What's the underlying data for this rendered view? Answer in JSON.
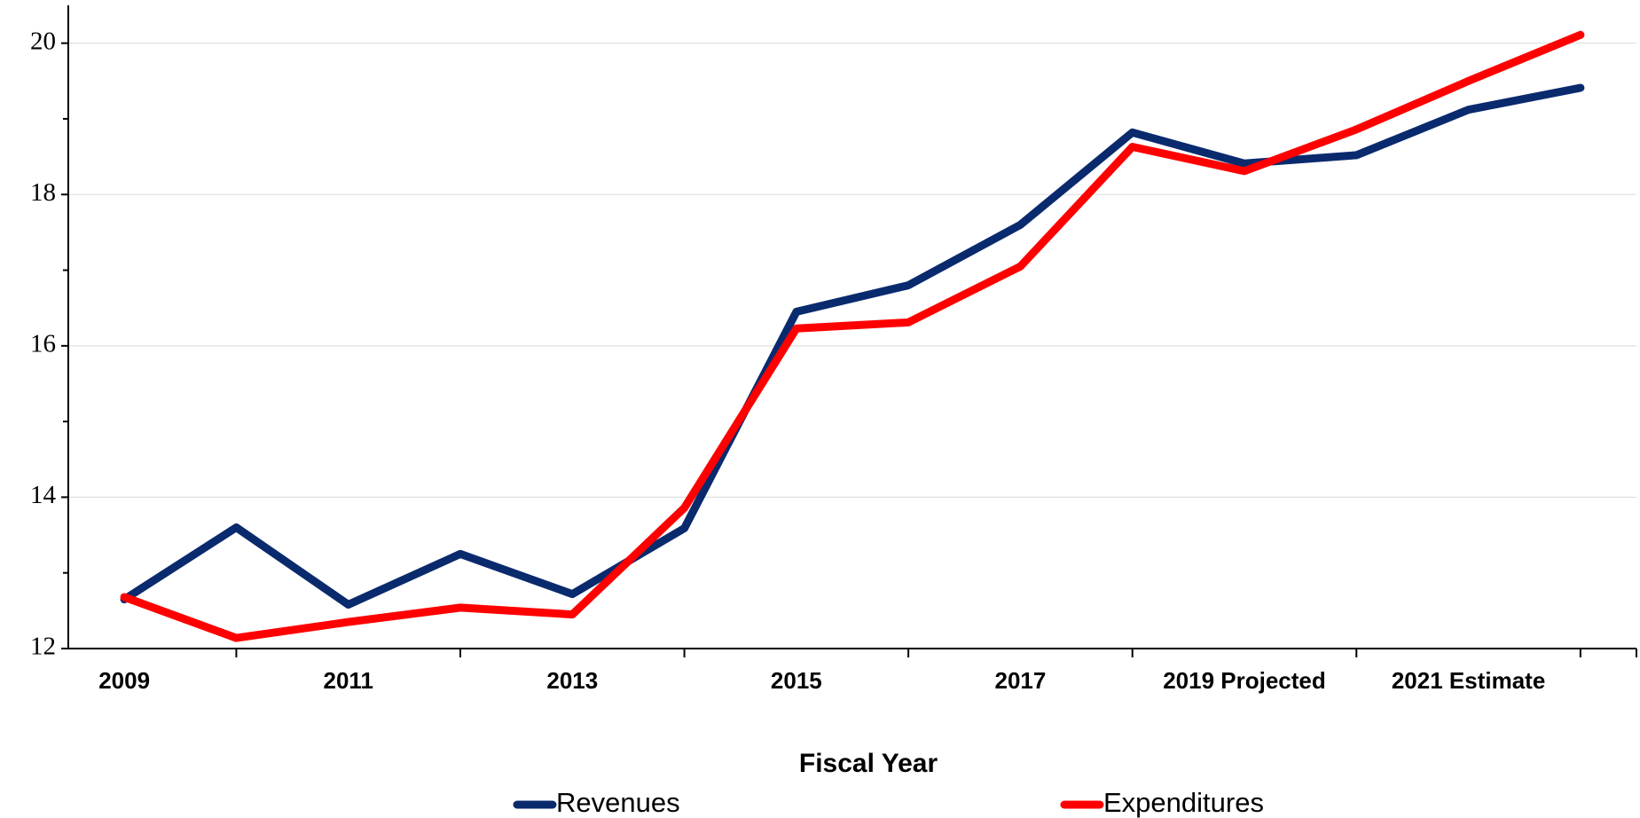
{
  "chart_data": {
    "type": "line",
    "x_label": "Fiscal Year",
    "categories": [
      "2009",
      null,
      "2011",
      null,
      "2013",
      null,
      "2015",
      null,
      "2017",
      null,
      "2019 Projected",
      null,
      "2021 Estimate",
      null
    ],
    "series": [
      {
        "name": "Revenues",
        "color": "#0a2a6e",
        "values": [
          12.65,
          13.6,
          12.58,
          13.25,
          12.72,
          13.59,
          16.45,
          16.8,
          17.6,
          18.82,
          18.41,
          18.52,
          19.12,
          19.41
        ]
      },
      {
        "name": "Expenditures",
        "color": "#ff0000",
        "values": [
          12.68,
          12.14,
          12.35,
          12.54,
          12.45,
          13.86,
          16.23,
          16.31,
          17.05,
          18.63,
          18.31,
          18.86,
          19.5,
          20.11
        ]
      }
    ],
    "ylim": [
      12,
      20.5
    ],
    "yticks": [
      12,
      14,
      16,
      18,
      20
    ],
    "minor_yticks": [
      13,
      15,
      17,
      19
    ],
    "grid": true,
    "legend": "bottom"
  }
}
